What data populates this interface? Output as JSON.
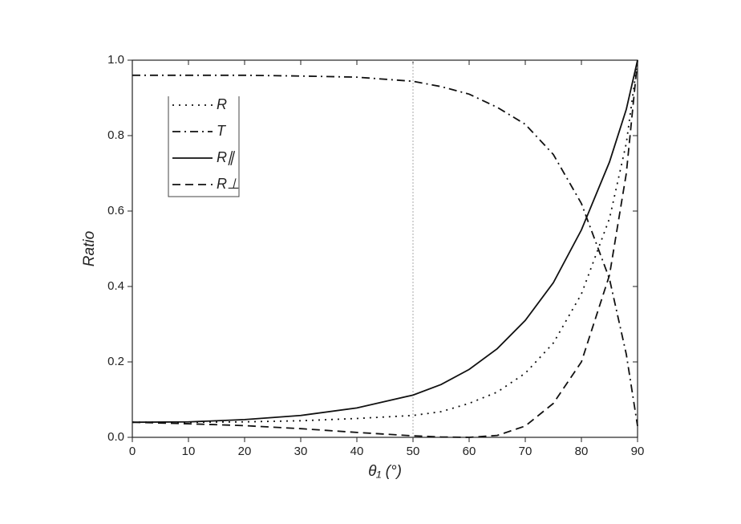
{
  "chart_data": {
    "type": "line",
    "xlabel": "θ₁ (°)",
    "ylabel": "Ratio",
    "x": [
      0,
      10,
      20,
      30,
      40,
      50,
      55,
      60,
      65,
      70,
      75,
      80,
      85,
      88,
      90
    ],
    "series": [
      {
        "name": "R",
        "color": "#111111",
        "dash": "dotted",
        "values": [
          0.04,
          0.04,
          0.041,
          0.044,
          0.05,
          0.058,
          0.068,
          0.09,
          0.12,
          0.17,
          0.25,
          0.38,
          0.58,
          0.78,
          1.0
        ]
      },
      {
        "name": "T",
        "color": "#111111",
        "dash": "dashdot",
        "values": [
          0.96,
          0.96,
          0.96,
          0.958,
          0.955,
          0.944,
          0.93,
          0.91,
          0.875,
          0.83,
          0.75,
          0.62,
          0.42,
          0.22,
          0.03
        ]
      },
      {
        "name": "R∥",
        "color": "#111111",
        "dash": "solid",
        "values": [
          0.04,
          0.041,
          0.047,
          0.058,
          0.078,
          0.112,
          0.14,
          0.18,
          0.235,
          0.31,
          0.41,
          0.55,
          0.73,
          0.87,
          1.0
        ]
      },
      {
        "name": "R⊥",
        "color": "#111111",
        "dash": "dashed",
        "values": [
          0.04,
          0.036,
          0.031,
          0.023,
          0.013,
          0.004,
          0.001,
          0.0,
          0.005,
          0.03,
          0.09,
          0.2,
          0.43,
          0.7,
          1.0
        ]
      }
    ],
    "xlim": [
      0,
      90
    ],
    "xticks": [
      0,
      10,
      20,
      30,
      40,
      50,
      60,
      70,
      80,
      90
    ],
    "ylim": [
      0,
      1
    ],
    "yticks": [
      {
        "value": 0,
        "label": "0.0"
      },
      {
        "value": 0.2,
        "label": "0.2"
      },
      {
        "value": 0.4,
        "label": "0.4"
      },
      {
        "value": 0.6,
        "label": "0.6"
      },
      {
        "value": 0.8,
        "label": "0.8"
      },
      {
        "value": 1,
        "label": "1.0"
      }
    ],
    "vline": 50,
    "vline_color": "#aaaaaa",
    "legend": "upper left",
    "grid": false
  }
}
